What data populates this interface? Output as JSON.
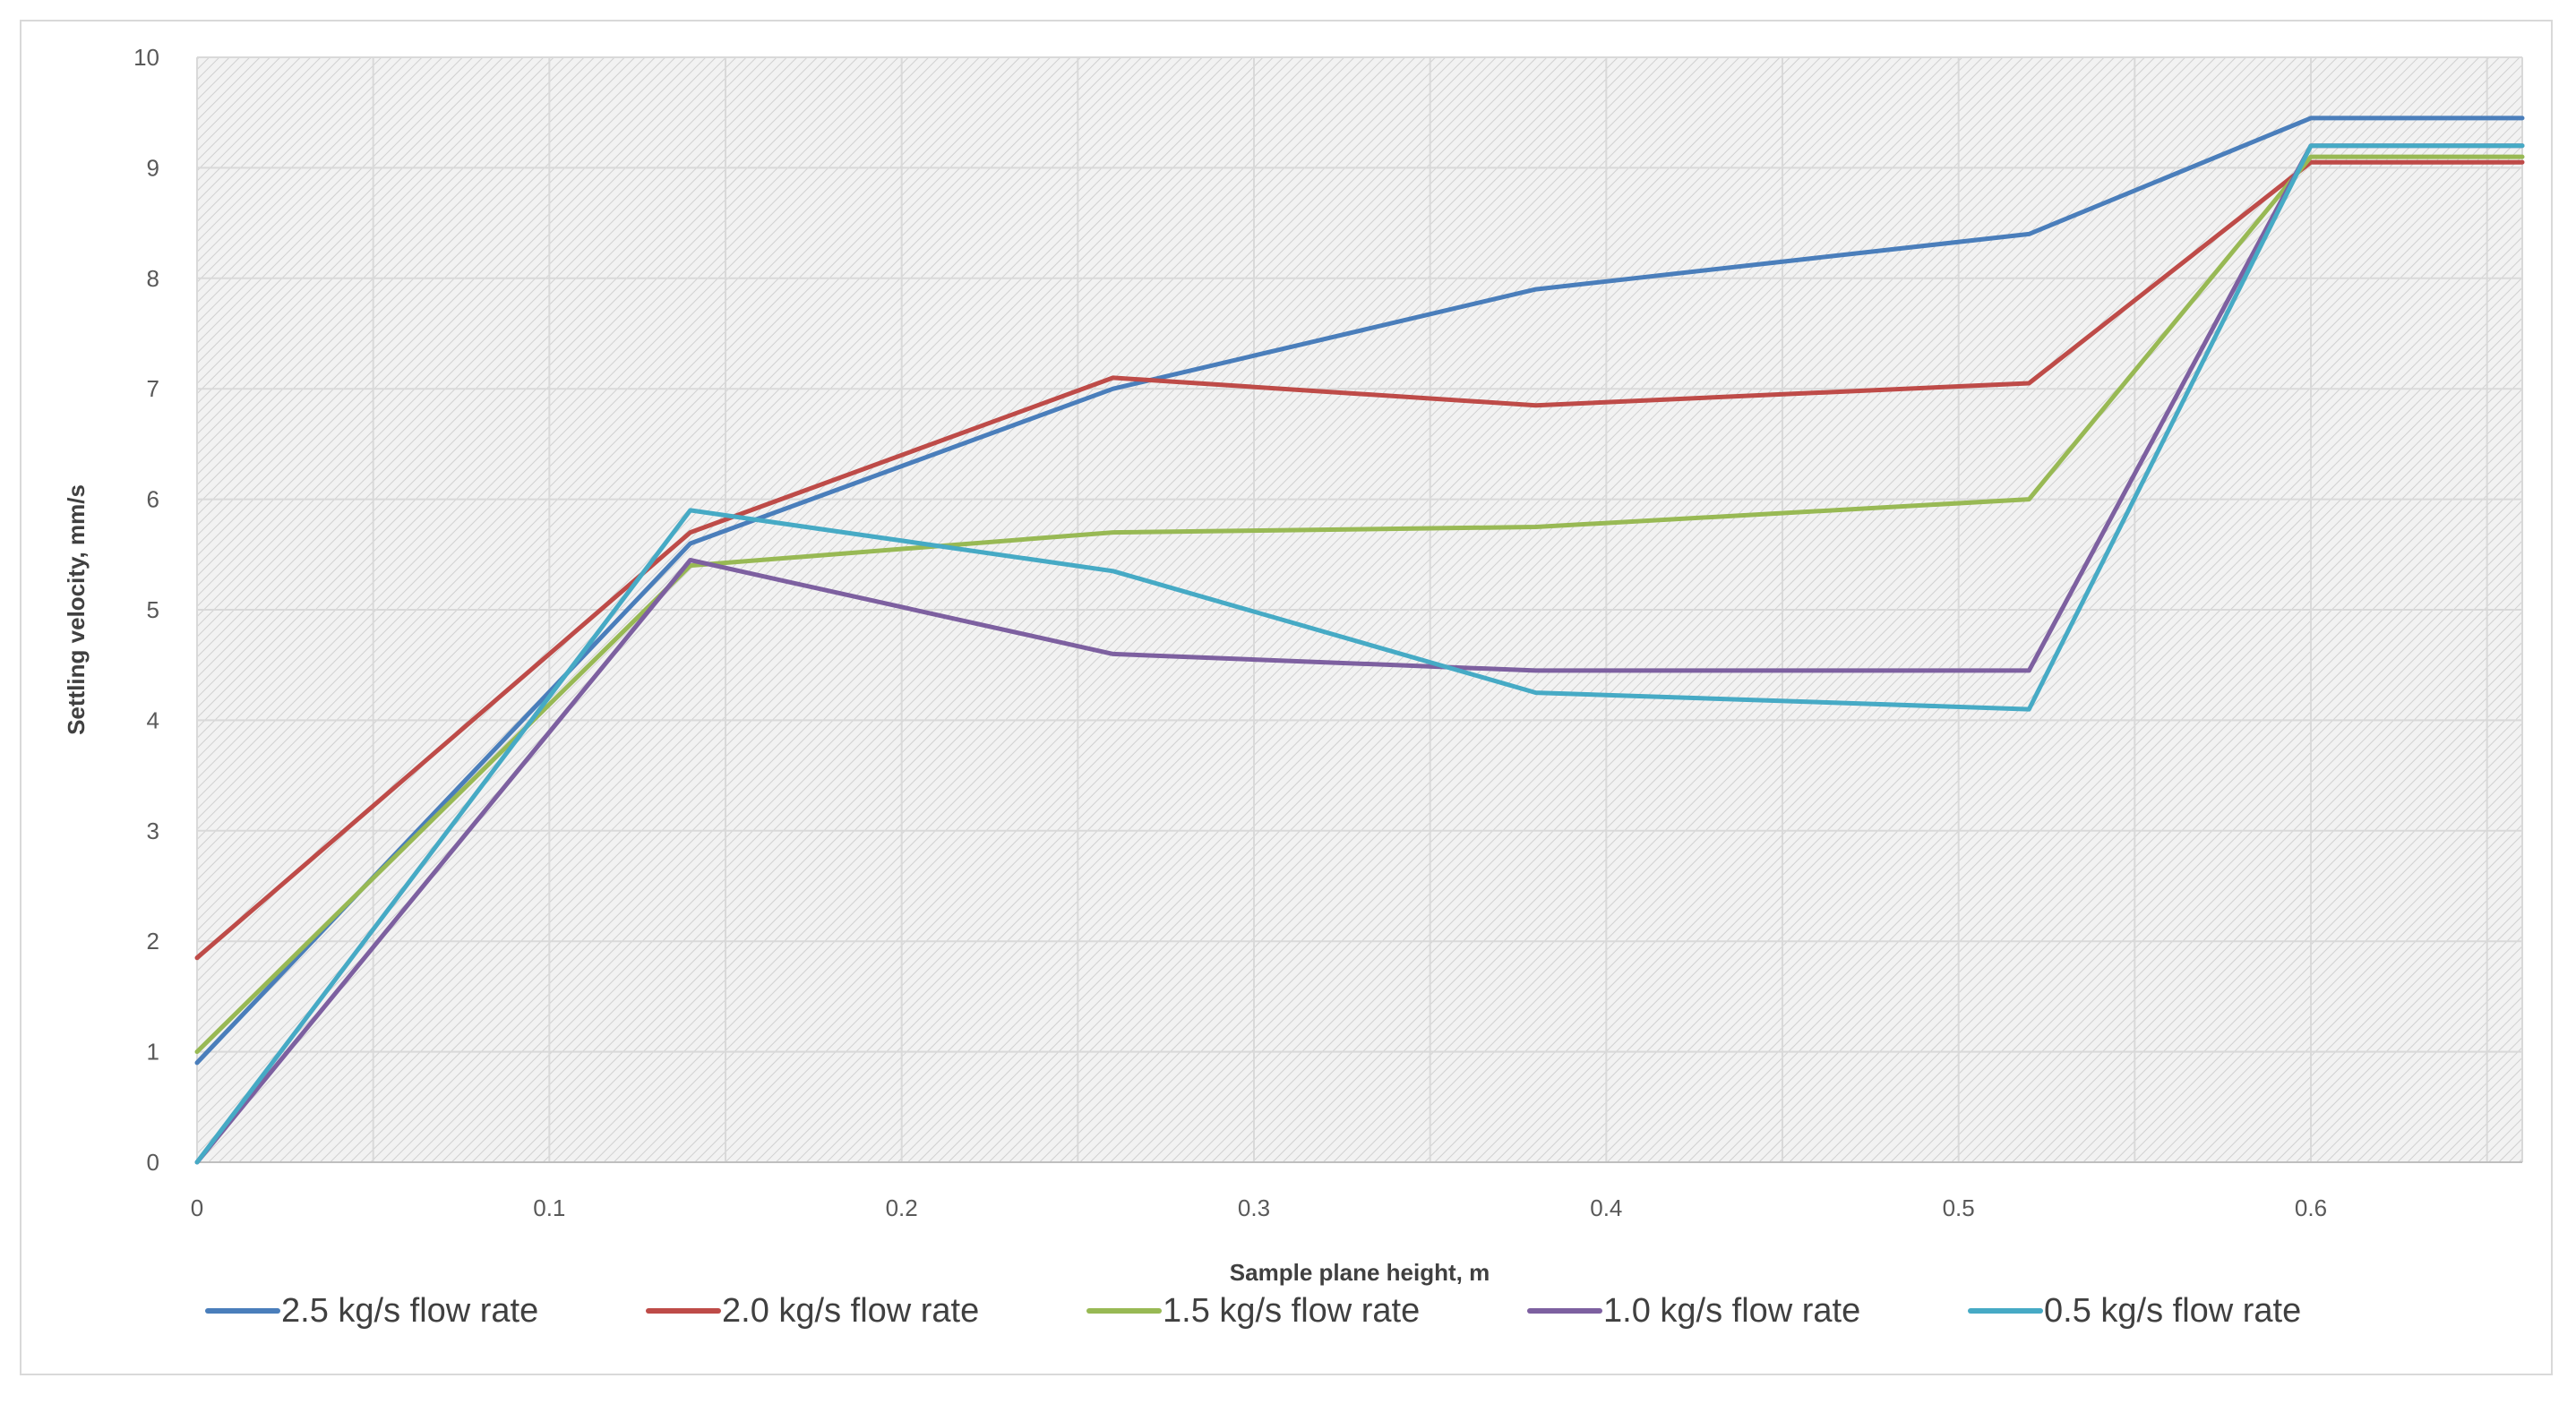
{
  "chart_data": {
    "type": "line",
    "title": "",
    "xlabel": "Sample plane height, m",
    "ylabel": "Settling velocity, mm/s",
    "xlim": [
      0,
      0.66
    ],
    "ylim": [
      0,
      10
    ],
    "xticks": [
      0,
      0.1,
      0.2,
      0.3,
      0.4,
      0.5,
      0.6
    ],
    "xtick_labels": [
      "0",
      "0.1",
      "0.2",
      "0.3",
      "0.4",
      "0.5",
      "0.6"
    ],
    "yticks": [
      0,
      1,
      2,
      3,
      4,
      5,
      6,
      7,
      8,
      9,
      10
    ],
    "ytick_labels": [
      "0",
      "1",
      "2",
      "3",
      "4",
      "5",
      "6",
      "7",
      "8",
      "9",
      "10"
    ],
    "grid": true,
    "legend_position": "bottom",
    "x": [
      0,
      0.14,
      0.26,
      0.38,
      0.52,
      0.6,
      0.66
    ],
    "series": [
      {
        "name": "2.5 kg/s flow rate",
        "color": "#4a7ebb",
        "values": [
          0.9,
          5.6,
          7.0,
          7.9,
          8.4,
          9.45,
          9.45
        ]
      },
      {
        "name": "2.0 kg/s flow rate",
        "color": "#be4b48",
        "values": [
          1.85,
          5.7,
          7.1,
          6.85,
          7.05,
          9.05,
          9.05
        ]
      },
      {
        "name": "1.5 kg/s flow rate",
        "color": "#98b954",
        "values": [
          1.0,
          5.4,
          5.7,
          5.75,
          6.0,
          9.1,
          9.1
        ]
      },
      {
        "name": "1.0 kg/s flow rate",
        "color": "#7d60a0",
        "values": [
          0.0,
          5.45,
          4.6,
          4.45,
          4.45,
          9.2,
          9.2
        ]
      },
      {
        "name": "0.5 kg/s flow rate",
        "color": "#46aac5",
        "values": [
          0.0,
          5.9,
          5.35,
          4.25,
          4.1,
          9.2,
          9.2
        ]
      }
    ]
  }
}
